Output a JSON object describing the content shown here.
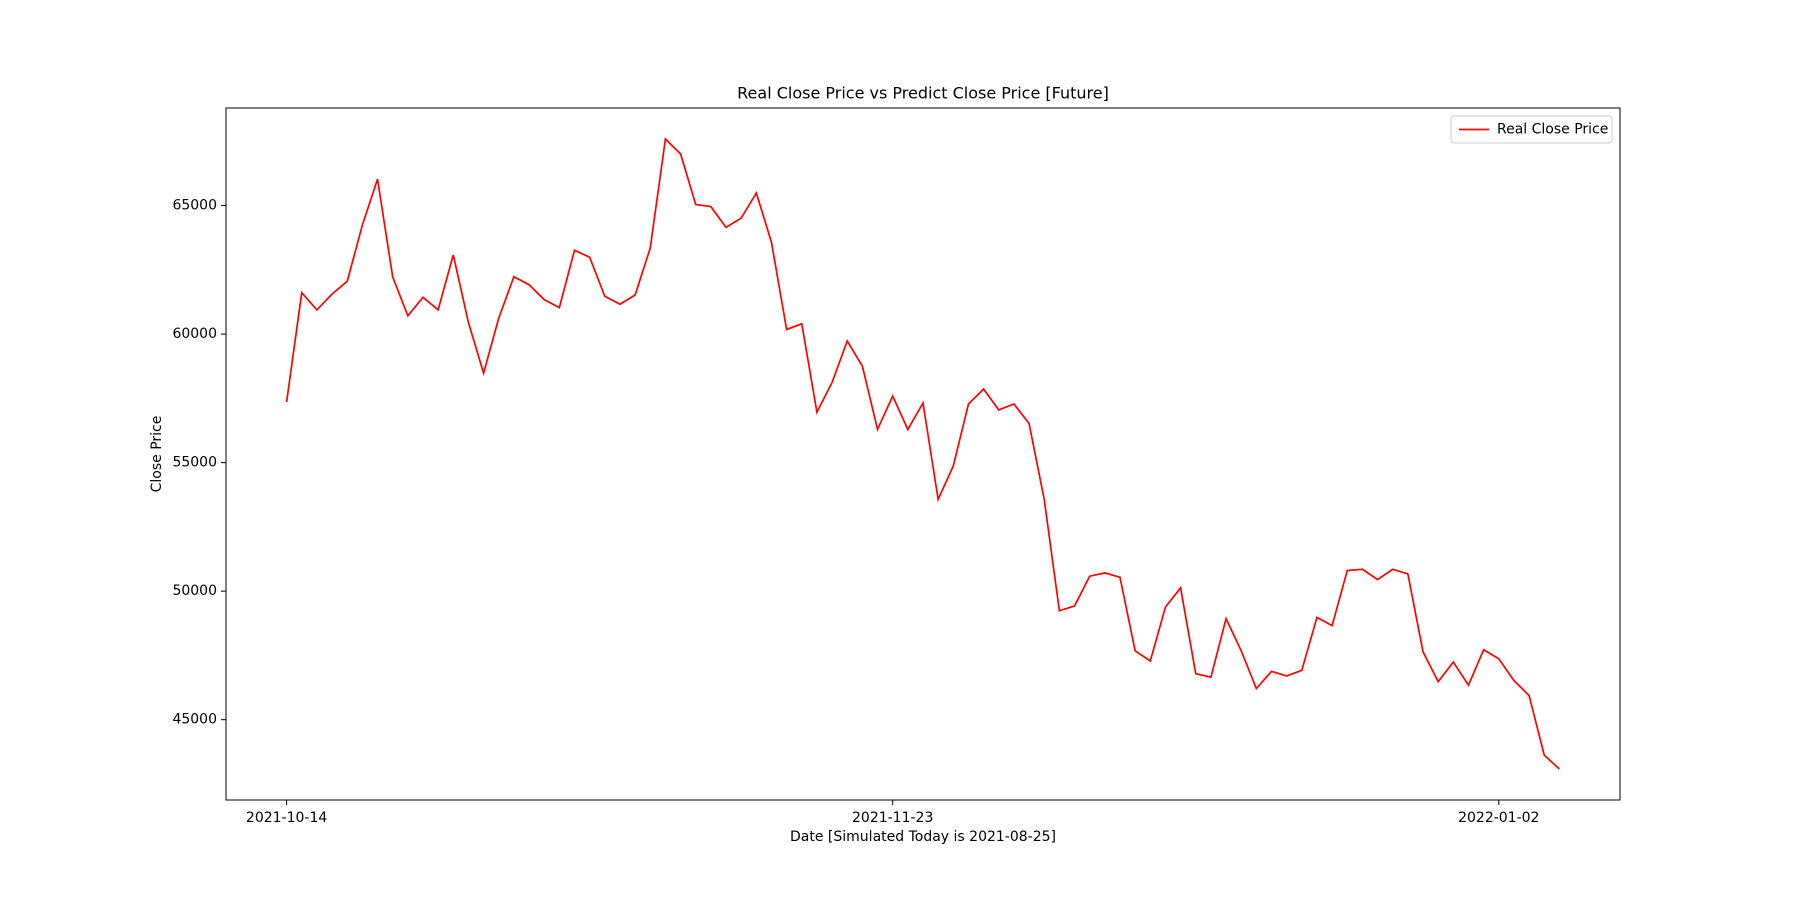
{
  "chart_data": {
    "type": "line",
    "title": "Real Close Price vs Predict Close Price [Future]",
    "xlabel": "Date [Simulated Today is 2021-08-25]",
    "ylabel": "Close Price",
    "x": [
      "2021-10-14",
      "2021-10-15",
      "2021-10-16",
      "2021-10-17",
      "2021-10-18",
      "2021-10-19",
      "2021-10-20",
      "2021-10-21",
      "2021-10-22",
      "2021-10-23",
      "2021-10-24",
      "2021-10-25",
      "2021-10-26",
      "2021-10-27",
      "2021-10-28",
      "2021-10-29",
      "2021-10-30",
      "2021-10-31",
      "2021-11-01",
      "2021-11-02",
      "2021-11-03",
      "2021-11-04",
      "2021-11-05",
      "2021-11-06",
      "2021-11-07",
      "2021-11-08",
      "2021-11-09",
      "2021-11-10",
      "2021-11-11",
      "2021-11-12",
      "2021-11-13",
      "2021-11-14",
      "2021-11-15",
      "2021-11-16",
      "2021-11-17",
      "2021-11-18",
      "2021-11-19",
      "2021-11-20",
      "2021-11-21",
      "2021-11-22",
      "2021-11-23",
      "2021-11-24",
      "2021-11-25",
      "2021-11-26",
      "2021-11-27",
      "2021-11-28",
      "2021-11-29",
      "2021-11-30",
      "2021-12-01",
      "2021-12-02",
      "2021-12-03",
      "2021-12-04",
      "2021-12-05",
      "2021-12-06",
      "2021-12-07",
      "2021-12-08",
      "2021-12-09",
      "2021-12-10",
      "2021-12-11",
      "2021-12-12",
      "2021-12-13",
      "2021-12-14",
      "2021-12-15",
      "2021-12-16",
      "2021-12-17",
      "2021-12-18",
      "2021-12-19",
      "2021-12-20",
      "2021-12-21",
      "2021-12-22",
      "2021-12-23",
      "2021-12-24",
      "2021-12-25",
      "2021-12-26",
      "2021-12-27",
      "2021-12-28",
      "2021-12-29",
      "2021-12-30",
      "2021-12-31",
      "2022-01-01",
      "2022-01-02",
      "2022-01-03",
      "2022-01-04",
      "2022-01-05",
      "2022-01-06"
    ],
    "series": [
      {
        "name": "Real Close Price",
        "color": "#ff0000",
        "values": [
          57360,
          61610,
          60940,
          61560,
          62050,
          64240,
          66030,
          62230,
          60710,
          61430,
          60940,
          63080,
          60450,
          58480,
          60620,
          62230,
          61920,
          61340,
          61030,
          63260,
          62990,
          61470,
          61160,
          61520,
          63350,
          67590,
          67010,
          65040,
          64960,
          64150,
          64510,
          65490,
          63570,
          60180,
          60400,
          56960,
          58120,
          59730,
          58750,
          56290,
          57590,
          56290,
          57320,
          53570,
          54870,
          57280,
          57860,
          57050,
          57280,
          56520,
          53570,
          49240,
          49420,
          50580,
          50710,
          50540,
          47680,
          47280,
          49380,
          50130,
          46790,
          46650,
          48930,
          47680,
          46210,
          46880,
          46700,
          46920,
          48980,
          48660,
          50800,
          50850,
          50450,
          50850,
          50670,
          47640,
          46480,
          47240,
          46340,
          47720,
          47370,
          46520,
          45940,
          43620,
          43080
        ]
      }
    ],
    "xlim": [
      "2021-10-10",
      "2022-01-10"
    ],
    "xticks": [
      "2021-10-14",
      "2021-11-23",
      "2022-01-02"
    ],
    "ylim": [
      41875,
      68795
    ],
    "yticks": [
      45000,
      50000,
      55000,
      60000,
      65000
    ],
    "legend": "upper right",
    "grid": false
  }
}
